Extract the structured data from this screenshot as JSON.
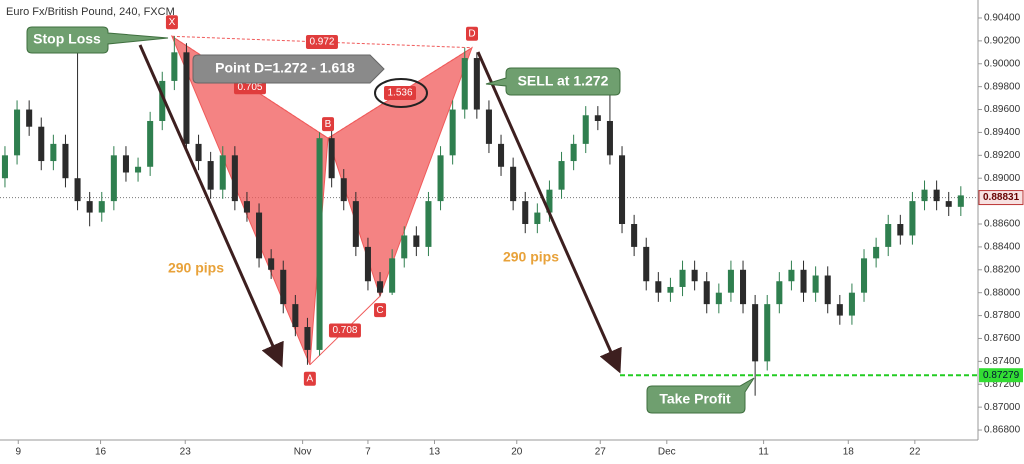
{
  "chart_data": {
    "type": "candlestick",
    "title": "Euro Fx/British Pound, 240, FXCM",
    "up_color": "#2f7f4f",
    "down_color": "#2b2b2b",
    "pattern_color": "#f05a5a",
    "ylim": [
      0.86713,
      0.90557
    ],
    "xlim": [
      -0.41,
      80.42
    ],
    "yticks": [
      {
        "value": 0.904,
        "label": "0.90400"
      },
      {
        "value": 0.902,
        "label": "0.90200"
      },
      {
        "value": 0.9,
        "label": "0.90000"
      },
      {
        "value": 0.898,
        "label": "0.89800"
      },
      {
        "value": 0.896,
        "label": "0.89600"
      },
      {
        "value": 0.894,
        "label": "0.89400"
      },
      {
        "value": 0.892,
        "label": "0.89200"
      },
      {
        "value": 0.89,
        "label": "0.89000"
      },
      {
        "value": 0.886,
        "label": "0.88600"
      },
      {
        "value": 0.884,
        "label": "0.88400"
      },
      {
        "value": 0.882,
        "label": "0.88200"
      },
      {
        "value": 0.88,
        "label": "0.88000"
      },
      {
        "value": 0.878,
        "label": "0.87800"
      },
      {
        "value": 0.876,
        "label": "0.87600"
      },
      {
        "value": 0.874,
        "label": "0.87400"
      },
      {
        "value": 0.872,
        "label": "0.87200"
      },
      {
        "value": 0.87,
        "label": "0.87000"
      },
      {
        "value": 0.868,
        "label": "0.86800"
      }
    ],
    "xticks": [
      {
        "value": 1.1,
        "label": "9"
      },
      {
        "value": 7.9,
        "label": "16"
      },
      {
        "value": 14.9,
        "label": "23"
      },
      {
        "value": 24.6,
        "label": "Nov"
      },
      {
        "value": 30,
        "label": "7"
      },
      {
        "value": 35.5,
        "label": "13"
      },
      {
        "value": 42.3,
        "label": "20"
      },
      {
        "value": 49.2,
        "label": "27"
      },
      {
        "value": 54.7,
        "label": "Dec"
      },
      {
        "value": 62.7,
        "label": "11"
      },
      {
        "value": 69.7,
        "label": "18"
      },
      {
        "value": 75.2,
        "label": "22"
      }
    ],
    "open": [
      0.89,
      0.892,
      0.896,
      0.8945,
      0.8915,
      0.893,
      0.89,
      0.888,
      0.887,
      0.888,
      0.892,
      0.8905,
      0.891,
      0.895,
      0.8985,
      0.901,
      0.893,
      0.8915,
      0.889,
      0.892,
      0.888,
      0.887,
      0.883,
      0.882,
      0.879,
      0.877,
      0.875,
      0.8935,
      0.89,
      0.888,
      0.884,
      0.881,
      0.88,
      0.883,
      0.885,
      0.884,
      0.888,
      0.892,
      0.896,
      0.9005,
      0.896,
      0.893,
      0.891,
      0.888,
      0.886,
      0.887,
      0.889,
      0.8915,
      0.893,
      0.8955,
      0.895,
      0.892,
      0.886,
      0.884,
      0.881,
      0.88,
      0.8805,
      0.882,
      0.881,
      0.879,
      0.88,
      0.882,
      0.879,
      0.874,
      0.879,
      0.881,
      0.882,
      0.88,
      0.8815,
      0.879,
      0.878,
      0.88,
      0.883,
      0.884,
      0.886,
      0.885,
      0.888,
      0.889,
      0.888,
      0.8875
    ],
    "high": [
      0.8928,
      0.8968,
      0.8968,
      0.8953,
      0.8938,
      0.8938,
      0.903,
      0.8888,
      0.8888,
      0.8928,
      0.8928,
      0.8918,
      0.8958,
      0.8993,
      0.9024,
      0.9018,
      0.8938,
      0.8923,
      0.8928,
      0.8928,
      0.8888,
      0.8878,
      0.8838,
      0.8828,
      0.8798,
      0.8778,
      0.894,
      0.8943,
      0.8908,
      0.8888,
      0.8848,
      0.8818,
      0.8838,
      0.8858,
      0.8858,
      0.8888,
      0.8928,
      0.8968,
      0.9014,
      0.901,
      0.8968,
      0.8938,
      0.8918,
      0.8888,
      0.8878,
      0.8898,
      0.8923,
      0.8938,
      0.8963,
      0.8963,
      0.8975,
      0.8928,
      0.8868,
      0.8848,
      0.8818,
      0.8813,
      0.8828,
      0.8828,
      0.8818,
      0.8808,
      0.8828,
      0.8828,
      0.8798,
      0.8798,
      0.8818,
      0.8828,
      0.8828,
      0.8823,
      0.8823,
      0.8798,
      0.8808,
      0.8838,
      0.8848,
      0.8868,
      0.8868,
      0.8888,
      0.8898,
      0.8898,
      0.8888,
      0.8893
    ],
    "low": [
      0.8892,
      0.8912,
      0.8937,
      0.8907,
      0.8907,
      0.8892,
      0.8872,
      0.8858,
      0.8862,
      0.8872,
      0.8897,
      0.8897,
      0.8902,
      0.8942,
      0.8977,
      0.8922,
      0.8907,
      0.8882,
      0.8882,
      0.8872,
      0.8862,
      0.8822,
      0.8812,
      0.8782,
      0.8762,
      0.8737,
      0.8745,
      0.8892,
      0.8872,
      0.8832,
      0.8802,
      0.8797,
      0.8798,
      0.8822,
      0.8832,
      0.8832,
      0.8872,
      0.8912,
      0.8952,
      0.8952,
      0.8922,
      0.8902,
      0.8872,
      0.8852,
      0.8852,
      0.8862,
      0.8882,
      0.8907,
      0.8922,
      0.8942,
      0.8912,
      0.8852,
      0.8832,
      0.8802,
      0.8792,
      0.8792,
      0.8797,
      0.8802,
      0.8782,
      0.8782,
      0.8792,
      0.8782,
      0.871,
      0.8732,
      0.8782,
      0.8802,
      0.8792,
      0.8792,
      0.8782,
      0.8772,
      0.8772,
      0.8792,
      0.8822,
      0.8832,
      0.8842,
      0.8842,
      0.8872,
      0.8872,
      0.8867,
      0.8867
    ],
    "close": [
      0.892,
      0.896,
      0.8945,
      0.8915,
      0.893,
      0.89,
      0.888,
      0.887,
      0.888,
      0.892,
      0.8905,
      0.891,
      0.895,
      0.8985,
      0.901,
      0.893,
      0.8915,
      0.889,
      0.892,
      0.888,
      0.887,
      0.883,
      0.882,
      0.879,
      0.877,
      0.875,
      0.8935,
      0.89,
      0.888,
      0.884,
      0.881,
      0.88,
      0.883,
      0.885,
      0.884,
      0.888,
      0.892,
      0.896,
      0.9005,
      0.896,
      0.893,
      0.891,
      0.888,
      0.886,
      0.887,
      0.889,
      0.8915,
      0.893,
      0.8955,
      0.895,
      0.892,
      0.886,
      0.884,
      0.881,
      0.88,
      0.8805,
      0.882,
      0.881,
      0.879,
      0.88,
      0.882,
      0.879,
      0.874,
      0.879,
      0.881,
      0.882,
      0.88,
      0.8815,
      0.879,
      0.878,
      0.88,
      0.883,
      0.884,
      0.886,
      0.885,
      0.888,
      0.889,
      0.888,
      0.8875,
      0.8885
    ],
    "last_price": 0.88831,
    "take_profit_price": 0.87279,
    "pattern": {
      "points": [
        {
          "label": "X",
          "x": 13.8,
          "y": 0.9024
        },
        {
          "label": "A",
          "x": 25.2,
          "y": 0.8737
        },
        {
          "label": "B",
          "x": 26.7,
          "y": 0.8935
        },
        {
          "label": "C",
          "x": 31.0,
          "y": 0.8797
        },
        {
          "label": "D",
          "x": 38.6,
          "y": 0.9014
        }
      ],
      "ratios": [
        0.972,
        0.705,
        1.536,
        0.708
      ]
    },
    "annotations": {
      "stop_loss": "Stop Loss",
      "point_d": "Point D=1.272 - 1.618",
      "sell": "SELL at 1.272",
      "pips_left": "290 pips",
      "pips_right": "290 pips",
      "take_profit": "Take Profit"
    }
  }
}
